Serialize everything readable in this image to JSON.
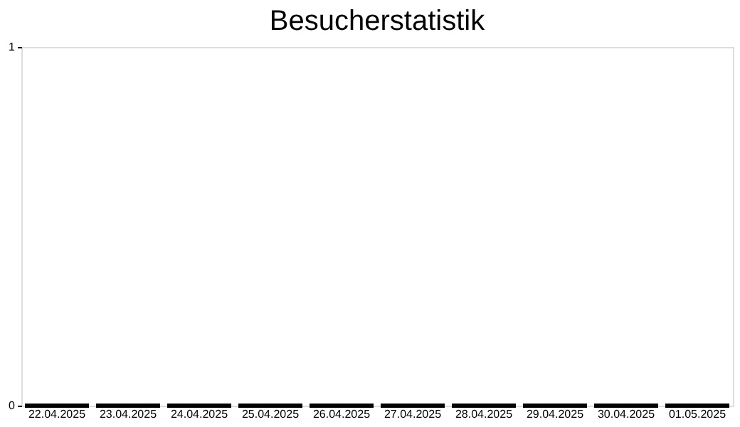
{
  "chart_data": {
    "type": "bar",
    "title": "Besucherstatistik",
    "categories": [
      "22.04.2025",
      "23.04.2025",
      "24.04.2025",
      "25.04.2025",
      "26.04.2025",
      "27.04.2025",
      "28.04.2025",
      "29.04.2025",
      "30.04.2025",
      "01.05.2025"
    ],
    "values": [
      0,
      0,
      0,
      0,
      0,
      0,
      0,
      0,
      0,
      0
    ],
    "color": "#000000",
    "ylim": [
      0,
      1
    ],
    "yticks": [
      0,
      1
    ],
    "grid": false
  }
}
